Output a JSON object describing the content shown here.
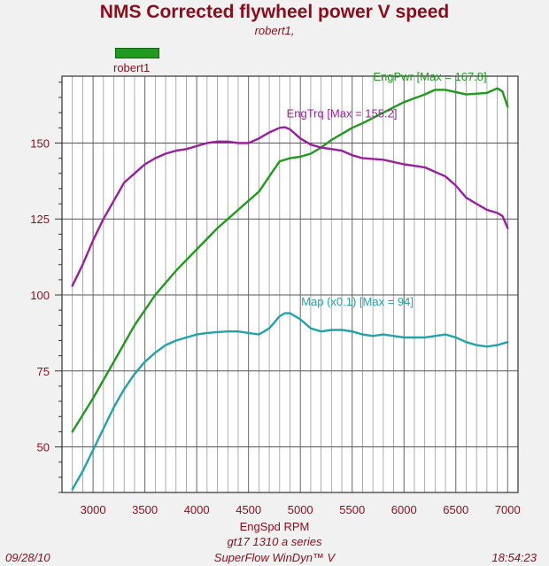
{
  "title": "NMS Corrected flywheel power V speed",
  "subtitle": "robert1,",
  "legend": {
    "label": "robert1",
    "color": "#1f9a1f"
  },
  "footer": {
    "date": "09/28/10",
    "time": "18:54:23",
    "series_name": "gt17 1310 a series",
    "software": "SuperFlow WinDyn™ V"
  },
  "chart_data": {
    "type": "line",
    "title": "NMS Corrected flywheel power V speed",
    "xlabel": "EngSpd  RPM",
    "ylabel": "",
    "xlim": [
      2700,
      7100
    ],
    "ylim": [
      35,
      172
    ],
    "x_ticks": [
      3000,
      3500,
      4000,
      4500,
      5000,
      5500,
      6000,
      6500,
      7000
    ],
    "y_ticks": [
      50,
      75,
      100,
      125,
      150
    ],
    "grid": true,
    "series": [
      {
        "name": "EngPwr",
        "label": "EngPwr [Max = 167.8]",
        "color": "#1f9a1f",
        "x": [
          2800,
          3000,
          3200,
          3400,
          3600,
          3800,
          4000,
          4200,
          4400,
          4600,
          4700,
          4800,
          4900,
          5000,
          5100,
          5200,
          5300,
          5400,
          5500,
          5600,
          5800,
          6000,
          6200,
          6300,
          6400,
          6600,
          6800,
          6900,
          6950,
          7000
        ],
        "y": [
          55,
          66,
          78,
          90,
          100,
          108,
          115,
          122,
          128,
          134,
          139,
          144,
          145,
          145.5,
          146.5,
          148.5,
          151,
          153,
          155,
          156.5,
          160,
          163.5,
          166,
          167.5,
          167.5,
          166,
          166.5,
          168,
          167,
          162
        ]
      },
      {
        "name": "EngTrq",
        "label": "EngTrq [Max = 155.2]",
        "color": "#9a1fa0",
        "x": [
          2800,
          2900,
          3000,
          3100,
          3200,
          3300,
          3400,
          3500,
          3600,
          3700,
          3800,
          3900,
          4000,
          4100,
          4200,
          4300,
          4400,
          4500,
          4600,
          4700,
          4800,
          4850,
          4900,
          5000,
          5100,
          5200,
          5300,
          5400,
          5500,
          5600,
          5800,
          6000,
          6200,
          6400,
          6500,
          6600,
          6700,
          6800,
          6900,
          6950,
          7000
        ],
        "y": [
          103,
          110,
          118,
          125,
          131,
          137,
          140,
          143,
          145,
          146.5,
          147.5,
          148,
          149,
          150,
          150.5,
          150.5,
          150,
          150,
          151.5,
          153.5,
          155,
          155.2,
          154.5,
          151.5,
          149.5,
          148.5,
          148,
          147.5,
          146,
          145,
          144.5,
          143,
          142,
          139,
          136,
          132,
          130,
          128,
          127,
          126,
          122
        ]
      },
      {
        "name": "Map  (x0.1)",
        "label": "Map  (x0.1) [Max = 94]",
        "color": "#21a3a8",
        "x": [
          2800,
          2900,
          3000,
          3100,
          3200,
          3300,
          3400,
          3500,
          3600,
          3700,
          3800,
          3900,
          4000,
          4100,
          4200,
          4300,
          4400,
          4500,
          4600,
          4700,
          4800,
          4850,
          4900,
          5000,
          5100,
          5200,
          5300,
          5400,
          5500,
          5600,
          5700,
          5800,
          5900,
          6000,
          6200,
          6300,
          6400,
          6500,
          6600,
          6700,
          6800,
          6900,
          7000
        ],
        "y": [
          36,
          42,
          49,
          56,
          63,
          69,
          74,
          78,
          81,
          83.5,
          85,
          86,
          87,
          87.5,
          87.8,
          88,
          88,
          87.5,
          87,
          89,
          93,
          94,
          94,
          92,
          89,
          88,
          88.5,
          88.5,
          88,
          87,
          86.5,
          87,
          86.5,
          86,
          86,
          86.5,
          87,
          86,
          84.5,
          83.5,
          83,
          83.5,
          84.5
        ]
      }
    ]
  }
}
